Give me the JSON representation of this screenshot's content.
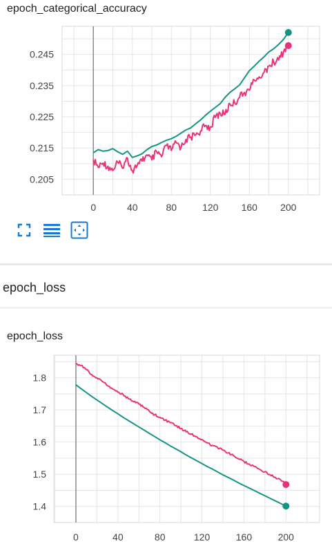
{
  "card1": {
    "title": "epoch_categorical_accuracy"
  },
  "section": {
    "title": "epoch_loss"
  },
  "card2": {
    "title": "epoch_loss"
  },
  "toolbar": {
    "icons": [
      "fullscreen-icon",
      "legend-toggle-icon",
      "fit-domain-icon"
    ],
    "color": "#1976d2"
  },
  "colors": {
    "train": "#e8337a",
    "validation": "#139484"
  },
  "chart_data": [
    {
      "type": "line",
      "title": "epoch_categorical_accuracy",
      "xlabel": "",
      "ylabel": "",
      "xlim": [
        -32,
        232
      ],
      "ylim": [
        0.2,
        0.254
      ],
      "x_ticks": [
        0,
        40,
        80,
        120,
        160,
        200
      ],
      "y_ticks": [
        0.205,
        0.215,
        0.225,
        0.235,
        0.245
      ],
      "grid": true,
      "series": [
        {
          "color": "#139484",
          "x": [
            0,
            5,
            10,
            15,
            20,
            25,
            30,
            35,
            40,
            45,
            50,
            55,
            60,
            65,
            70,
            75,
            80,
            85,
            90,
            95,
            100,
            105,
            110,
            115,
            120,
            125,
            130,
            135,
            140,
            145,
            150,
            155,
            160,
            165,
            170,
            175,
            180,
            185,
            190,
            195,
            200
          ],
          "y": [
            0.2135,
            0.2145,
            0.214,
            0.2142,
            0.2148,
            0.2138,
            0.213,
            0.214,
            0.212,
            0.2125,
            0.2132,
            0.2145,
            0.2155,
            0.216,
            0.2168,
            0.2175,
            0.218,
            0.2188,
            0.2198,
            0.2208,
            0.2215,
            0.2228,
            0.224,
            0.2255,
            0.2268,
            0.228,
            0.2292,
            0.2312,
            0.2328,
            0.234,
            0.2352,
            0.2375,
            0.2398,
            0.2412,
            0.2428,
            0.2442,
            0.2458,
            0.2468,
            0.2482,
            0.2498,
            0.252
          ]
        },
        {
          "color": "#e8337a",
          "x": [
            0,
            5,
            10,
            15,
            20,
            25,
            30,
            35,
            40,
            45,
            50,
            55,
            60,
            65,
            70,
            75,
            80,
            85,
            90,
            95,
            100,
            105,
            110,
            115,
            120,
            125,
            130,
            135,
            140,
            145,
            150,
            155,
            160,
            165,
            170,
            175,
            180,
            185,
            190,
            195,
            200
          ],
          "y": [
            0.2112,
            0.2088,
            0.2102,
            0.2092,
            0.2078,
            0.2105,
            0.2085,
            0.2118,
            0.2078,
            0.2095,
            0.2108,
            0.2128,
            0.2112,
            0.2138,
            0.2122,
            0.2158,
            0.2142,
            0.2168,
            0.2152,
            0.2178,
            0.2185,
            0.2192,
            0.2205,
            0.2222,
            0.2218,
            0.2248,
            0.2262,
            0.2258,
            0.2292,
            0.2295,
            0.2312,
            0.2328,
            0.2335,
            0.2368,
            0.2378,
            0.2392,
            0.2412,
            0.2425,
            0.2432,
            0.2458,
            0.2478
          ]
        }
      ]
    },
    {
      "type": "line",
      "title": "epoch_loss",
      "xlabel": "",
      "ylabel": "",
      "xlim": [
        -21,
        232
      ],
      "ylim": [
        1.35,
        1.87
      ],
      "x_ticks": [
        0,
        40,
        80,
        120,
        160,
        200
      ],
      "y_ticks": [
        1.4,
        1.5,
        1.6,
        1.7,
        1.8
      ],
      "grid": true,
      "series": [
        {
          "color": "#e8337a",
          "x": [
            0,
            5,
            10,
            15,
            20,
            25,
            30,
            35,
            40,
            45,
            50,
            55,
            60,
            65,
            70,
            75,
            80,
            85,
            90,
            95,
            100,
            105,
            110,
            115,
            120,
            125,
            130,
            135,
            140,
            145,
            150,
            155,
            160,
            165,
            170,
            175,
            180,
            185,
            190,
            195,
            200
          ],
          "y": [
            1.845,
            1.838,
            1.825,
            1.81,
            1.8,
            1.789,
            1.775,
            1.765,
            1.755,
            1.748,
            1.735,
            1.725,
            1.718,
            1.708,
            1.695,
            1.685,
            1.677,
            1.668,
            1.66,
            1.651,
            1.642,
            1.632,
            1.625,
            1.617,
            1.608,
            1.598,
            1.59,
            1.582,
            1.575,
            1.566,
            1.558,
            1.548,
            1.54,
            1.532,
            1.524,
            1.515,
            1.508,
            1.498,
            1.49,
            1.482,
            1.468
          ]
        },
        {
          "color": "#139484",
          "x": [
            0,
            5,
            10,
            15,
            20,
            25,
            30,
            35,
            40,
            45,
            50,
            55,
            60,
            65,
            70,
            75,
            80,
            85,
            90,
            95,
            100,
            105,
            110,
            115,
            120,
            125,
            130,
            135,
            140,
            145,
            150,
            155,
            160,
            165,
            170,
            175,
            180,
            185,
            190,
            195,
            200
          ],
          "y": [
            1.778,
            1.766,
            1.754,
            1.742,
            1.731,
            1.72,
            1.709,
            1.698,
            1.688,
            1.677,
            1.667,
            1.657,
            1.647,
            1.637,
            1.627,
            1.617,
            1.607,
            1.598,
            1.588,
            1.579,
            1.57,
            1.56,
            1.551,
            1.542,
            1.533,
            1.524,
            1.516,
            1.507,
            1.498,
            1.49,
            1.482,
            1.473,
            1.465,
            1.457,
            1.449,
            1.441,
            1.433,
            1.425,
            1.417,
            1.409,
            1.401
          ]
        }
      ]
    }
  ]
}
